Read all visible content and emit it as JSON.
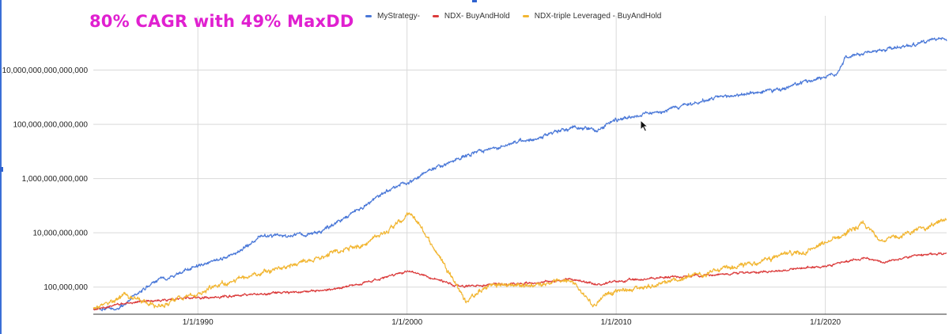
{
  "annotation": "80% CAGR with 49% MaxDD",
  "legend": [
    {
      "name": "MyStrategy-",
      "color": "#4a78d8"
    },
    {
      "name": "NDX- BuyAndHold",
      "color": "#db3b3b"
    },
    {
      "name": "NDX-triple Leveraged - BuyAndHold",
      "color": "#f2b632"
    }
  ],
  "colors": {
    "grid": "#d9d9d9",
    "axis_text": "#222222"
  },
  "chart_data": {
    "type": "line",
    "title": "",
    "xlabel": "",
    "ylabel": "",
    "y_scale": "log",
    "grid": true,
    "legend_position": "top",
    "xlim": [
      1985.0,
      2025.8
    ],
    "ylim": [
      10000000,
      1000000000000000000
    ],
    "x_ticks": [
      {
        "value": 1990,
        "label": "1/1/1990"
      },
      {
        "value": 2000,
        "label": "1/1/2000"
      },
      {
        "value": 2010,
        "label": "1/1/2010"
      },
      {
        "value": 2020,
        "label": "1/1/2020"
      }
    ],
    "y_ticks": [
      {
        "value": 100000000,
        "label": "100,000,000"
      },
      {
        "value": 10000000000,
        "label": "10,000,000,000"
      },
      {
        "value": 1000000000000,
        "label": "1,000,000,000,000"
      },
      {
        "value": 100000000000000,
        "label": "100,000,000,000,000"
      },
      {
        "value": 10000000000000000,
        "label": "10,000,000,000,000,000"
      }
    ],
    "series": [
      {
        "name": "MyStrategy-",
        "color": "#4a78d8",
        "x": [
          1985.0,
          1986.2,
          1987.0,
          1988.0,
          1990.0,
          1992.0,
          1993.0,
          1995.0,
          1996.0,
          1998.0,
          1999.5,
          2000.1,
          2001.0,
          2002.5,
          2004.0,
          2006.0,
          2008.0,
          2009.0,
          2010.0,
          2012.0,
          2015.0,
          2018.0,
          2019.6,
          2020.5,
          2021.0,
          2023.0,
          2025.8
        ],
        "y": [
          15000000.0,
          15000000.0,
          50000000.0,
          160000000.0,
          600000000.0,
          2000000000.0,
          8000000000.0,
          8000000000.0,
          12000000000.0,
          100000000000.0,
          600000000000.0,
          700000000000.0,
          2000000000000.0,
          6000000000000.0,
          12000000000000.0,
          30000000000000.0,
          80000000000000.0,
          60000000000000.0,
          150000000000000.0,
          300000000000000.0,
          1000000000000000.0,
          2000000000000000.0,
          5000000000000000.0,
          7000000000000000.0,
          3e+16,
          6e+16,
          1.5e+17
        ]
      },
      {
        "name": "NDX- BuyAndHold",
        "color": "#db3b3b",
        "x": [
          1985.0,
          1987.0,
          1990.0,
          1993.0,
          1996.0,
          1998.0,
          2000.0,
          2000.6,
          2001.5,
          2002.7,
          2004.0,
          2006.0,
          2007.8,
          2009.0,
          2010.0,
          2012.0,
          2015.0,
          2018.0,
          2020.0,
          2021.8,
          2022.8,
          2024.0,
          2025.8
        ],
        "y": [
          15000000.0,
          30000000.0,
          40000000.0,
          55000000.0,
          75000000.0,
          150000000.0,
          380000000.0,
          300000000.0,
          180000000.0,
          100000000.0,
          130000000.0,
          140000000.0,
          200000000.0,
          120000000.0,
          160000000.0,
          220000000.0,
          300000000.0,
          420000000.0,
          600000000.0,
          1200000000.0,
          800000000.0,
          1300000000.0,
          1800000000.0
        ]
      },
      {
        "name": "NDX-triple Leveraged - BuyAndHold",
        "color": "#f2b632",
        "x": [
          1985.0,
          1986.5,
          1987.7,
          1988.0,
          1990.0,
          1992.0,
          1995.0,
          1998.0,
          1999.8,
          2000.1,
          2000.6,
          2001.4,
          2002.0,
          2002.8,
          2004.0,
          2006.0,
          2007.8,
          2008.9,
          2009.5,
          2010.5,
          2012.0,
          2014.0,
          2016.0,
          2018.0,
          2019.0,
          2020.0,
          2021.8,
          2022.8,
          2024.0,
          2025.8
        ],
        "y": [
          15000000.0,
          50000000.0,
          25000000.0,
          20000000.0,
          60000000.0,
          200000000.0,
          800000000.0,
          4000000000.0,
          30000000000.0,
          50000000000.0,
          20000000000.0,
          2000000000.0,
          400000000.0,
          30000000.0,
          120000000.0,
          120000000.0,
          200000000.0,
          20000000.0,
          60000000.0,
          80000000.0,
          120000000.0,
          300000000.0,
          600000000.0,
          1500000000.0,
          2000000000.0,
          4000000000.0,
          20000000000.0,
          5000000000.0,
          10000000000.0,
          30000000000.0
        ]
      }
    ]
  }
}
